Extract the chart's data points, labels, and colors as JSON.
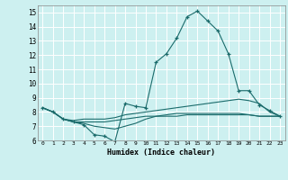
{
  "title": "",
  "xlabel": "Humidex (Indice chaleur)",
  "xlim": [
    -0.5,
    23.5
  ],
  "ylim": [
    6,
    15.5
  ],
  "yticks": [
    6,
    7,
    8,
    9,
    10,
    11,
    12,
    13,
    14,
    15
  ],
  "xticks": [
    0,
    1,
    2,
    3,
    4,
    5,
    6,
    7,
    8,
    9,
    10,
    11,
    12,
    13,
    14,
    15,
    16,
    17,
    18,
    19,
    20,
    21,
    22,
    23
  ],
  "background_color": "#cdf0f0",
  "grid_color": "#ffffff",
  "line_color": "#1a6b6b",
  "lines": [
    {
      "x": [
        0,
        1,
        2,
        3,
        4,
        5,
        6,
        7,
        8,
        9,
        10,
        11,
        12,
        13,
        14,
        15,
        16,
        17,
        18,
        19,
        20,
        21,
        22,
        23
      ],
      "y": [
        8.3,
        8.0,
        7.5,
        7.3,
        7.1,
        6.4,
        6.3,
        5.9,
        8.6,
        8.4,
        8.3,
        11.5,
        12.1,
        13.2,
        14.7,
        15.1,
        14.4,
        13.7,
        12.1,
        9.5,
        9.5,
        8.5,
        8.1,
        7.7
      ],
      "marker": "+"
    },
    {
      "x": [
        0,
        1,
        2,
        3,
        4,
        5,
        6,
        7,
        8,
        9,
        10,
        11,
        12,
        13,
        14,
        15,
        16,
        17,
        18,
        19,
        20,
        21,
        22,
        23
      ],
      "y": [
        8.3,
        8.0,
        7.5,
        7.4,
        7.5,
        7.5,
        7.5,
        7.6,
        7.8,
        7.9,
        8.0,
        8.1,
        8.2,
        8.3,
        8.4,
        8.5,
        8.6,
        8.7,
        8.8,
        8.9,
        8.8,
        8.6,
        8.0,
        7.7
      ],
      "marker": null
    },
    {
      "x": [
        0,
        1,
        2,
        3,
        4,
        5,
        6,
        7,
        8,
        9,
        10,
        11,
        12,
        13,
        14,
        15,
        16,
        17,
        18,
        19,
        20,
        21,
        22,
        23
      ],
      "y": [
        8.3,
        8.0,
        7.5,
        7.3,
        7.3,
        7.3,
        7.3,
        7.4,
        7.5,
        7.6,
        7.7,
        7.7,
        7.7,
        7.7,
        7.8,
        7.8,
        7.8,
        7.8,
        7.8,
        7.8,
        7.8,
        7.7,
        7.7,
        7.7
      ],
      "marker": null
    },
    {
      "x": [
        0,
        1,
        2,
        3,
        4,
        5,
        6,
        7,
        8,
        9,
        10,
        11,
        12,
        13,
        14,
        15,
        16,
        17,
        18,
        19,
        20,
        21,
        22,
        23
      ],
      "y": [
        8.3,
        8.0,
        7.5,
        7.3,
        7.2,
        7.0,
        6.9,
        6.8,
        7.0,
        7.2,
        7.5,
        7.7,
        7.8,
        7.9,
        7.9,
        7.9,
        7.9,
        7.9,
        7.9,
        7.9,
        7.8,
        7.7,
        7.7,
        7.7
      ],
      "marker": null
    }
  ]
}
